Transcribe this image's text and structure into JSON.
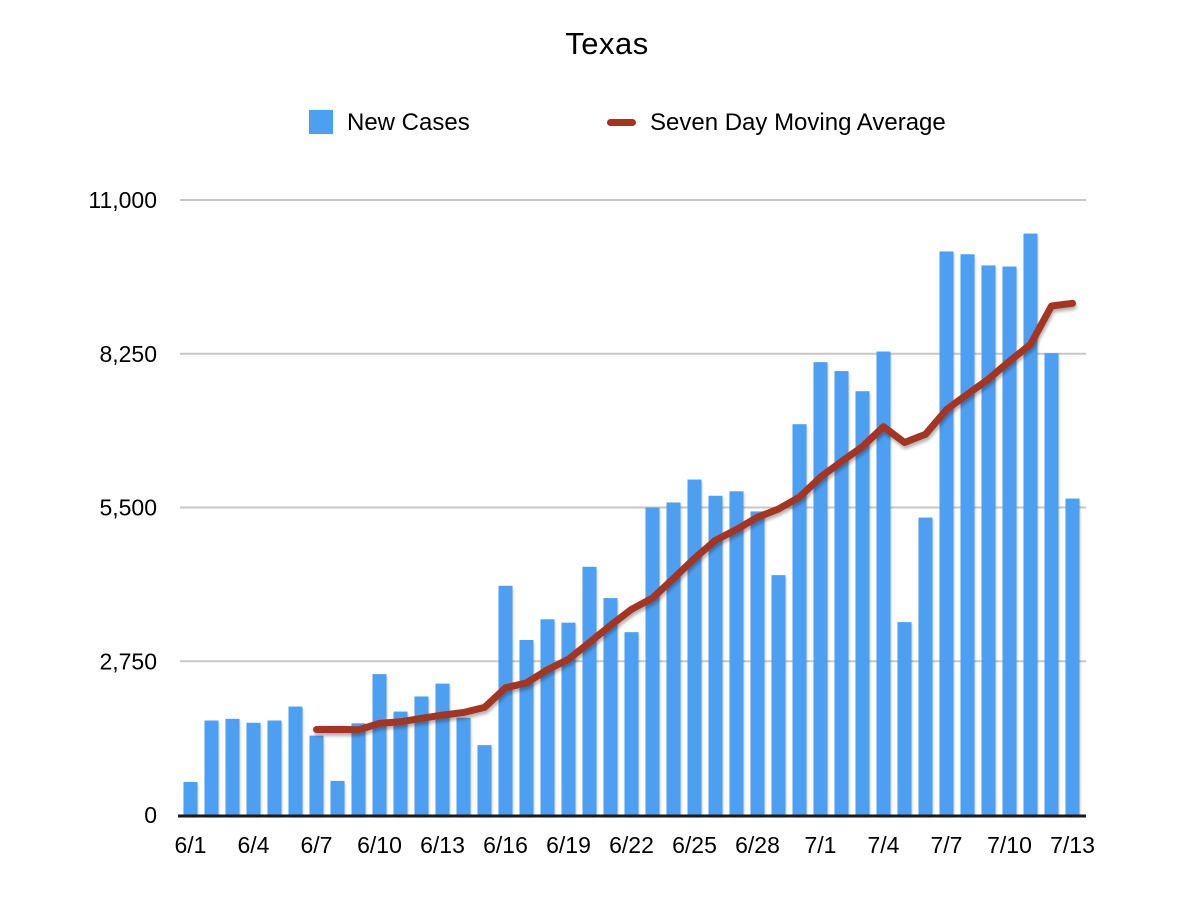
{
  "chart_data": {
    "type": "bar",
    "title": "Texas",
    "grid": "horizontal",
    "legend_position": "top",
    "ylim": [
      0,
      11000
    ],
    "y_ticks": [
      0,
      2750,
      5500,
      8250,
      11000
    ],
    "y_tick_labels": [
      "0",
      "2,750",
      "5,500",
      "8,250",
      "11,000"
    ],
    "x_tick_labels": [
      "6/1",
      "6/4",
      "6/7",
      "6/10",
      "6/13",
      "6/16",
      "6/19",
      "6/22",
      "6/25",
      "6/28",
      "7/1",
      "7/4",
      "7/7",
      "7/10",
      "7/13"
    ],
    "categories": [
      "6/1",
      "6/2",
      "6/3",
      "6/4",
      "6/5",
      "6/6",
      "6/7",
      "6/8",
      "6/9",
      "6/10",
      "6/11",
      "6/12",
      "6/13",
      "6/14",
      "6/15",
      "6/16",
      "6/17",
      "6/18",
      "6/19",
      "6/20",
      "6/21",
      "6/22",
      "6/23",
      "6/24",
      "6/25",
      "6/26",
      "6/27",
      "6/28",
      "6/29",
      "6/30",
      "7/1",
      "7/2",
      "7/3",
      "7/4",
      "7/5",
      "7/6",
      "7/7",
      "7/8",
      "7/9",
      "7/10",
      "7/11",
      "7/12",
      "7/13"
    ],
    "series": [
      {
        "name": "New Cases",
        "type": "bar",
        "color": "#4D9FF1",
        "values": [
          590,
          1690,
          1720,
          1650,
          1690,
          1940,
          1420,
          610,
          1640,
          2520,
          1850,
          2120,
          2350,
          1740,
          1250,
          4100,
          3130,
          3500,
          3440,
          4440,
          3880,
          3270,
          5500,
          5590,
          6000,
          5710,
          5790,
          5430,
          4290,
          6990,
          8100,
          7940,
          7580,
          8290,
          3450,
          5320,
          10080,
          10030,
          9830,
          9810,
          10400,
          8260,
          5660
        ]
      },
      {
        "name": "Seven Day Moving Average",
        "type": "line",
        "color": "#A43420",
        "values": [
          null,
          null,
          null,
          null,
          null,
          null,
          1529,
          1531,
          1524,
          1639,
          1667,
          1729,
          1787,
          1833,
          1924,
          2276,
          2363,
          2599,
          2787,
          3086,
          3391,
          3680,
          3880,
          4231,
          4589,
          4913,
          5106,
          5327,
          5473,
          5686,
          6044,
          6321,
          6589,
          6946,
          6663,
          6810,
          7251,
          7527,
          7797,
          8116,
          8417,
          9104,
          9153
        ]
      }
    ],
    "axis_colors": {
      "gridline": "#C7C7C7",
      "baseline": "#1A1A1A",
      "text": "#000000"
    }
  }
}
